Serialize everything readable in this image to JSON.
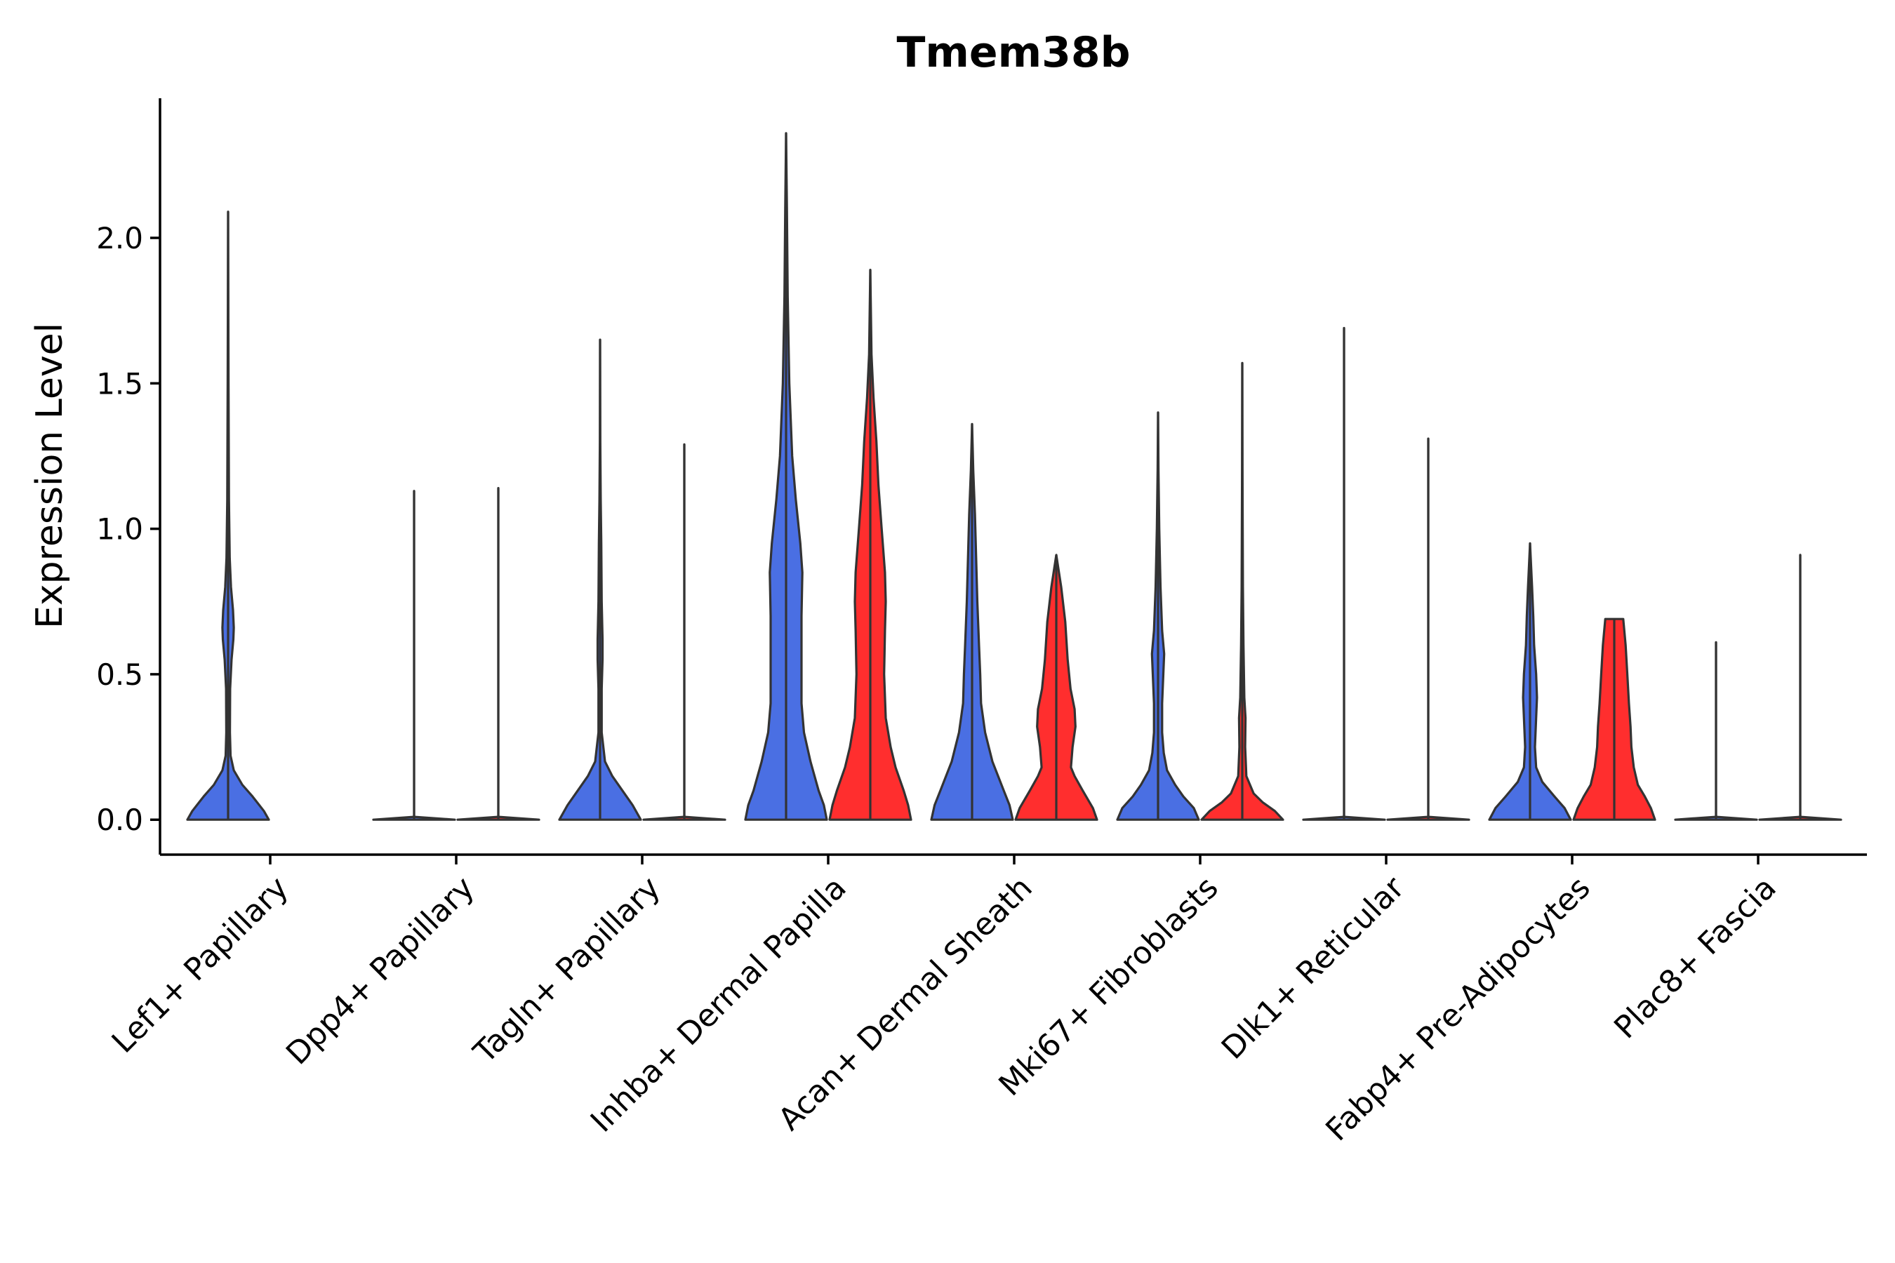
{
  "chart_data": {
    "type": "violin",
    "title": "Tmem38b",
    "xlabel": "",
    "ylabel": "Expression Level",
    "ylim": [
      -0.12,
      2.48
    ],
    "yticks": [
      0.0,
      0.5,
      1.0,
      1.5,
      2.0
    ],
    "ytick_labels": [
      "0.0",
      "0.5",
      "1.0",
      "1.5",
      "2.0"
    ],
    "legend": "none",
    "categories": [
      "Lef1+ Papillary",
      "Dpp4+ Papillary",
      "Tagln+ Papillary",
      "Inhba+ Dermal Papilla",
      "Acan+ Dermal Sheath",
      "Mki67+ Fibroblasts",
      "Dlk1+ Reticular",
      "Fabp4+ Pre-Adipocytes",
      "Plac8+ Fascia"
    ],
    "series": [
      {
        "name": "group 1",
        "color": "#4A6FE3",
        "violins": [
          {
            "category": "Lef1+ Papillary",
            "max": 2.09,
            "profile": [
              [
                0.0,
                1.0
              ],
              [
                0.03,
                0.88
              ],
              [
                0.08,
                0.6
              ],
              [
                0.12,
                0.35
              ],
              [
                0.17,
                0.14
              ],
              [
                0.22,
                0.06
              ],
              [
                0.3,
                0.045
              ],
              [
                0.45,
                0.05
              ],
              [
                0.55,
                0.085
              ],
              [
                0.62,
                0.13
              ],
              [
                0.66,
                0.14
              ],
              [
                0.72,
                0.12
              ],
              [
                0.8,
                0.07
              ],
              [
                0.9,
                0.04
              ],
              [
                1.1,
                0.02
              ],
              [
                1.5,
                0.01
              ],
              [
                2.09,
                0.0
              ]
            ]
          },
          {
            "category": "Dpp4+ Papillary",
            "max": 1.13,
            "profile": [
              [
                0.0,
                1.0
              ],
              [
                0.01,
                0.0
              ],
              [
                1.13,
                0.0
              ]
            ]
          },
          {
            "category": "Tagln+ Papillary",
            "max": 1.65,
            "profile": [
              [
                0.0,
                1.0
              ],
              [
                0.05,
                0.8
              ],
              [
                0.1,
                0.55
              ],
              [
                0.15,
                0.3
              ],
              [
                0.2,
                0.12
              ],
              [
                0.3,
                0.04
              ],
              [
                0.45,
                0.04
              ],
              [
                0.55,
                0.06
              ],
              [
                0.62,
                0.06
              ],
              [
                0.75,
                0.04
              ],
              [
                0.95,
                0.03
              ],
              [
                1.1,
                0.015
              ],
              [
                1.3,
                0.005
              ],
              [
                1.65,
                0.0
              ]
            ]
          },
          {
            "category": "Inhba+ Dermal Papilla",
            "max": 2.36,
            "profile": [
              [
                0.0,
                1.0
              ],
              [
                0.05,
                0.93
              ],
              [
                0.1,
                0.8
              ],
              [
                0.2,
                0.6
              ],
              [
                0.3,
                0.44
              ],
              [
                0.4,
                0.38
              ],
              [
                0.55,
                0.38
              ],
              [
                0.7,
                0.38
              ],
              [
                0.85,
                0.4
              ],
              [
                0.95,
                0.35
              ],
              [
                1.1,
                0.24
              ],
              [
                1.25,
                0.15
              ],
              [
                1.5,
                0.08
              ],
              [
                1.8,
                0.04
              ],
              [
                2.1,
                0.02
              ],
              [
                2.36,
                0.0
              ]
            ]
          },
          {
            "category": "Acan+ Dermal Sheath",
            "max": 1.36,
            "profile": [
              [
                0.0,
                1.0
              ],
              [
                0.05,
                0.92
              ],
              [
                0.1,
                0.78
              ],
              [
                0.2,
                0.5
              ],
              [
                0.3,
                0.32
              ],
              [
                0.4,
                0.22
              ],
              [
                0.5,
                0.2
              ],
              [
                0.6,
                0.17
              ],
              [
                0.75,
                0.13
              ],
              [
                0.9,
                0.1
              ],
              [
                1.05,
                0.07
              ],
              [
                1.2,
                0.03
              ],
              [
                1.36,
                0.0
              ]
            ]
          },
          {
            "category": "Mki67+ Fibroblasts",
            "max": 1.4,
            "profile": [
              [
                0.0,
                1.0
              ],
              [
                0.04,
                0.88
              ],
              [
                0.08,
                0.62
              ],
              [
                0.12,
                0.42
              ],
              [
                0.17,
                0.22
              ],
              [
                0.23,
                0.14
              ],
              [
                0.3,
                0.1
              ],
              [
                0.4,
                0.1
              ],
              [
                0.5,
                0.13
              ],
              [
                0.57,
                0.15
              ],
              [
                0.65,
                0.1
              ],
              [
                0.8,
                0.06
              ],
              [
                1.0,
                0.03
              ],
              [
                1.2,
                0.01
              ],
              [
                1.4,
                0.0
              ]
            ]
          },
          {
            "category": "Dlk1+ Reticular",
            "max": 1.69,
            "profile": [
              [
                0.0,
                1.0
              ],
              [
                0.01,
                0.0
              ],
              [
                1.69,
                0.0
              ]
            ]
          },
          {
            "category": "Fabp4+ Pre-Adipocytes",
            "max": 0.95,
            "profile": [
              [
                0.0,
                1.0
              ],
              [
                0.04,
                0.85
              ],
              [
                0.08,
                0.6
              ],
              [
                0.13,
                0.3
              ],
              [
                0.18,
                0.15
              ],
              [
                0.25,
                0.12
              ],
              [
                0.35,
                0.15
              ],
              [
                0.42,
                0.17
              ],
              [
                0.5,
                0.15
              ],
              [
                0.6,
                0.1
              ],
              [
                0.7,
                0.08
              ],
              [
                0.8,
                0.05
              ],
              [
                0.95,
                0.0
              ]
            ]
          },
          {
            "category": "Plac8+ Fascia",
            "max": 0.61,
            "profile": [
              [
                0.0,
                1.0
              ],
              [
                0.01,
                0.0
              ],
              [
                0.61,
                0.0
              ]
            ]
          }
        ]
      },
      {
        "name": "group 2",
        "color": "#FF2E2E",
        "violins": [
          {
            "category": "Lef1+ Papillary",
            "max": null,
            "profile": []
          },
          {
            "category": "Dpp4+ Papillary",
            "max": 1.14,
            "profile": [
              [
                0.0,
                1.0
              ],
              [
                0.01,
                0.0
              ],
              [
                1.14,
                0.0
              ]
            ]
          },
          {
            "category": "Tagln+ Papillary",
            "max": 1.29,
            "profile": [
              [
                0.0,
                1.0
              ],
              [
                0.01,
                0.0
              ],
              [
                1.29,
                0.0
              ]
            ]
          },
          {
            "category": "Inhba+ Dermal Papilla",
            "max": 1.89,
            "profile": [
              [
                0.0,
                1.0
              ],
              [
                0.05,
                0.93
              ],
              [
                0.1,
                0.82
              ],
              [
                0.18,
                0.62
              ],
              [
                0.25,
                0.5
              ],
              [
                0.35,
                0.38
              ],
              [
                0.5,
                0.34
              ],
              [
                0.65,
                0.36
              ],
              [
                0.75,
                0.38
              ],
              [
                0.85,
                0.36
              ],
              [
                1.0,
                0.28
              ],
              [
                1.15,
                0.2
              ],
              [
                1.3,
                0.15
              ],
              [
                1.45,
                0.08
              ],
              [
                1.6,
                0.03
              ],
              [
                1.89,
                0.0
              ]
            ]
          },
          {
            "category": "Acan+ Dermal Sheath",
            "max": 0.91,
            "profile": [
              [
                0.0,
                1.0
              ],
              [
                0.04,
                0.9
              ],
              [
                0.1,
                0.65
              ],
              [
                0.15,
                0.45
              ],
              [
                0.18,
                0.36
              ],
              [
                0.25,
                0.4
              ],
              [
                0.32,
                0.47
              ],
              [
                0.38,
                0.45
              ],
              [
                0.45,
                0.35
              ],
              [
                0.55,
                0.28
              ],
              [
                0.68,
                0.22
              ],
              [
                0.8,
                0.12
              ],
              [
                0.91,
                0.0
              ]
            ]
          },
          {
            "category": "Mki67+ Fibroblasts",
            "max": 1.57,
            "profile": [
              [
                0.0,
                1.0
              ],
              [
                0.03,
                0.8
              ],
              [
                0.06,
                0.5
              ],
              [
                0.09,
                0.28
              ],
              [
                0.15,
                0.1
              ],
              [
                0.25,
                0.07
              ],
              [
                0.35,
                0.08
              ],
              [
                0.42,
                0.05
              ],
              [
                0.6,
                0.03
              ],
              [
                0.8,
                0.015
              ],
              [
                1.2,
                0.005
              ],
              [
                1.57,
                0.0
              ]
            ]
          },
          {
            "category": "Dlk1+ Reticular",
            "max": 1.31,
            "profile": [
              [
                0.0,
                1.0
              ],
              [
                0.01,
                0.0
              ],
              [
                1.31,
                0.0
              ]
            ]
          },
          {
            "category": "Fabp4+ Pre-Adipocytes",
            "max": 0.69,
            "profile": [
              [
                0.0,
                1.0
              ],
              [
                0.04,
                0.9
              ],
              [
                0.08,
                0.75
              ],
              [
                0.12,
                0.58
              ],
              [
                0.18,
                0.48
              ],
              [
                0.25,
                0.42
              ],
              [
                0.32,
                0.4
              ],
              [
                0.4,
                0.36
              ],
              [
                0.5,
                0.32
              ],
              [
                0.6,
                0.28
              ],
              [
                0.69,
                0.22
              ]
            ]
          },
          {
            "category": "Plac8+ Fascia",
            "max": 0.91,
            "profile": [
              [
                0.0,
                1.0
              ],
              [
                0.01,
                0.0
              ],
              [
                0.91,
                0.0
              ]
            ]
          }
        ]
      }
    ]
  }
}
